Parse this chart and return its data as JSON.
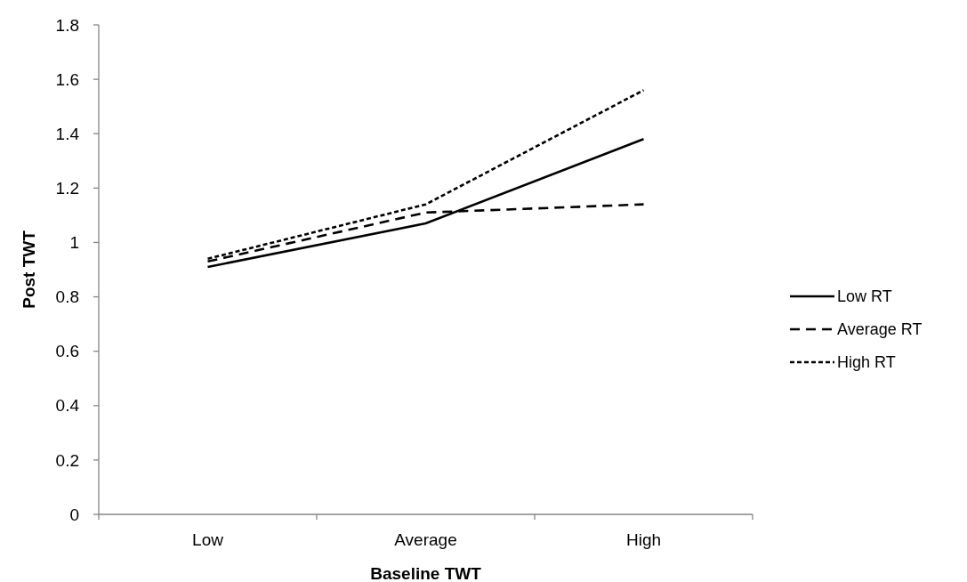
{
  "chart_data": {
    "type": "line",
    "xlabel": "Baseline TWT",
    "ylabel": "Post TWT",
    "categories": [
      "Low",
      "Average",
      "High"
    ],
    "series": [
      {
        "name": "Low RT",
        "color": "#000000",
        "line_style": "solid",
        "values": [
          0.91,
          1.07,
          1.38
        ]
      },
      {
        "name": "Average RT",
        "color": "#000000",
        "line_style": "dashed",
        "values": [
          0.93,
          1.11,
          1.14
        ]
      },
      {
        "name": "High RT",
        "color": "#000000",
        "line_style": "dotted",
        "values": [
          0.94,
          1.14,
          1.56
        ]
      }
    ],
    "ylim": [
      0,
      1.8
    ],
    "yticks": [
      0,
      0.2,
      0.4,
      0.6,
      0.8,
      1,
      1.2,
      1.4,
      1.6,
      1.8
    ],
    "grid": false,
    "legend": "right",
    "marker": "none"
  }
}
